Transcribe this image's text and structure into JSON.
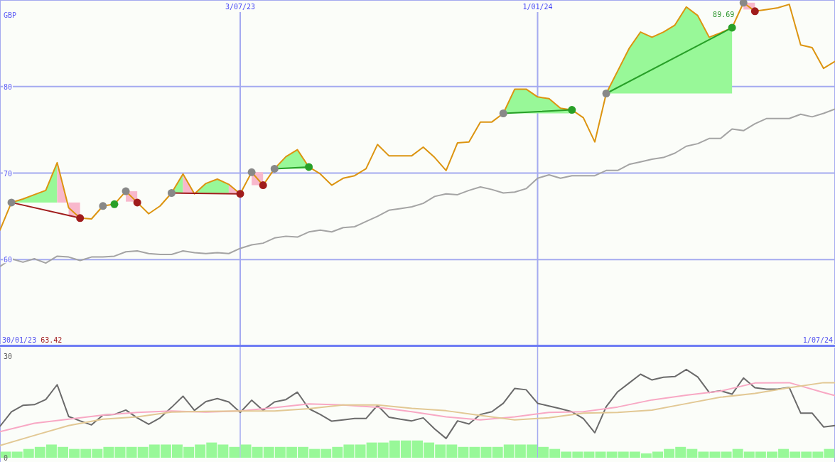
{
  "chart_data": [
    {
      "type": "line",
      "ylabel": "GBP",
      "x": [
        "2023-02-06",
        "2023-02-13",
        "2023-02-20",
        "2023-02-27",
        "2023-03-06",
        "2023-03-13",
        "2023-03-20",
        "2023-03-27",
        "2023-04-03",
        "2023-04-10",
        "2023-04-17",
        "2023-04-24",
        "2023-05-01",
        "2023-05-08",
        "2023-05-15",
        "2023-05-22",
        "2023-05-29",
        "2023-06-05",
        "2023-06-12",
        "2023-06-19",
        "2023-06-26",
        "2023-07-03",
        "2023-07-10",
        "2023-07-17",
        "2023-07-24",
        "2023-07-31",
        "2023-08-07",
        "2023-08-14",
        "2023-08-21",
        "2023-08-28",
        "2023-09-04",
        "2023-09-11",
        "2023-09-18",
        "2023-09-25",
        "2023-10-02",
        "2023-10-09",
        "2023-10-16",
        "2023-10-23",
        "2023-10-30",
        "2023-11-06",
        "2023-11-13",
        "2023-11-20",
        "2023-11-27",
        "2023-12-04",
        "2023-12-11",
        "2023-12-18",
        "2023-12-25",
        "2024-01-01",
        "2024-01-08",
        "2024-01-15",
        "2024-01-22",
        "2024-01-29",
        "2024-02-05",
        "2024-02-12",
        "2024-02-19",
        "2024-02-26",
        "2024-03-04",
        "2024-03-11",
        "2024-03-18",
        "2024-03-25",
        "2024-04-01",
        "2024-04-08",
        "2024-04-15",
        "2024-04-22",
        "2024-04-29",
        "2024-05-06",
        "2024-05-13",
        "2024-05-20",
        "2024-05-27",
        "2024-06-03",
        "2024-06-10",
        "2024-06-17",
        "2024-06-24",
        "2024-07-01"
      ],
      "xlim": [
        "2023-02-06",
        "2024-07-01"
      ],
      "xticks": [
        {
          "value": "2023-07-03",
          "label": "3/07/23"
        },
        {
          "value": "2024-01-01",
          "label": "1/01/24"
        }
      ],
      "ylim": [
        50,
        90
      ],
      "yticks": [
        60,
        70,
        80
      ],
      "grid": true,
      "annotations": [
        "30/01/23",
        "63.42",
        "1/07/24",
        {
          "text": "89.69",
          "x": "2024-05-06",
          "y": 89.69
        }
      ],
      "series": [
        {
          "color": "#dc9410",
          "values": [
            63.42,
            66.6,
            67.0,
            67.5,
            68.0,
            71.2,
            66.0,
            64.8,
            64.7,
            66.2,
            66.4,
            67.9,
            66.6,
            65.3,
            66.2,
            67.7,
            69.9,
            67.6,
            68.8,
            69.3,
            68.7,
            67.6,
            70.1,
            68.6,
            70.5,
            71.9,
            72.7,
            70.7,
            69.9,
            68.6,
            69.4,
            69.7,
            70.5,
            73.3,
            72.0,
            72.0,
            72.0,
            73.0,
            71.8,
            70.3,
            73.5,
            73.6,
            75.9,
            75.9,
            76.9,
            79.7,
            79.7,
            78.8,
            78.6,
            77.5,
            77.3,
            76.4,
            73.6,
            79.2,
            81.8,
            84.4,
            86.3,
            85.7,
            86.3,
            87.1,
            89.2,
            88.2,
            85.7,
            86.2,
            86.8,
            89.69,
            88.7,
            88.9,
            89.1,
            89.5,
            84.8,
            84.5,
            82.1,
            82.9
          ]
        },
        {
          "color": "#a4a4a4",
          "values": [
            59.2,
            60.1,
            59.7,
            60.1,
            59.6,
            60.4,
            60.3,
            59.9,
            60.3,
            60.3,
            60.4,
            60.9,
            61.0,
            60.7,
            60.6,
            60.6,
            61.0,
            60.8,
            60.7,
            60.8,
            60.7,
            61.3,
            61.7,
            61.9,
            62.5,
            62.7,
            62.6,
            63.2,
            63.4,
            63.2,
            63.7,
            63.8,
            64.4,
            65.0,
            65.7,
            65.9,
            66.1,
            66.5,
            67.3,
            67.6,
            67.5,
            68.0,
            68.4,
            68.1,
            67.7,
            67.8,
            68.2,
            69.4,
            69.8,
            69.4,
            69.7,
            69.7,
            69.7,
            70.3,
            70.3,
            71.0,
            71.3,
            71.6,
            71.8,
            72.3,
            73.1,
            73.4,
            74.0,
            74.0,
            75.1,
            74.9,
            75.7,
            76.3,
            76.3,
            76.3,
            76.8,
            76.5,
            76.9,
            77.4
          ]
        },
        {
          "color": "#98f898",
          "x": [
            "2023-02-13",
            "2023-02-20",
            "2023-02-27",
            "2023-03-06",
            "2023-03-13"
          ],
          "values": [
            null,
            null,
            null,
            null,
            null
          ],
          "lower": [
            66.6,
            66.6,
            66.6,
            66.6,
            66.6
          ],
          "upper": [
            66.6,
            67.0,
            67.5,
            68.0,
            71.2
          ]
        },
        {
          "color": "#f8b8cc",
          "x": [
            "2023-03-13",
            "2023-03-20"
          ],
          "values": [
            null,
            null
          ],
          "lower": [
            66.6,
            66.6
          ],
          "upper": [
            71.2,
            66.0
          ]
        },
        {
          "color": "#f8b8cc",
          "x": [
            "2023-03-20",
            "2023-03-27"
          ],
          "values": [
            null,
            null
          ],
          "lower": [
            65.0,
            65.0
          ],
          "upper": [
            66.6,
            66.6
          ]
        },
        {
          "color": "#f8b8cc",
          "x": [
            "2023-04-24",
            "2023-05-01"
          ],
          "values": [
            null,
            null
          ],
          "lower": [
            66.7,
            66.7
          ],
          "upper": [
            67.9,
            67.9
          ]
        },
        {
          "color": "#98f898",
          "x": [
            "2023-05-22",
            "2023-05-29"
          ],
          "values": [
            null,
            null
          ],
          "lower": [
            67.7,
            67.7
          ],
          "upper": [
            67.7,
            69.9
          ]
        },
        {
          "color": "#f8b8cc",
          "x": [
            "2023-05-29",
            "2023-06-05"
          ],
          "values": [
            null,
            null
          ],
          "lower": [
            67.7,
            67.7
          ],
          "upper": [
            69.9,
            67.6
          ]
        },
        {
          "color": "#98f898",
          "x": [
            "2023-06-05",
            "2023-06-12",
            "2023-06-19",
            "2023-06-26"
          ],
          "values": [
            null,
            null,
            null,
            null
          ],
          "lower": [
            67.7,
            67.7,
            67.7,
            67.7
          ],
          "upper": [
            67.6,
            68.8,
            69.3,
            68.7
          ]
        },
        {
          "color": "#f8b8cc",
          "x": [
            "2023-06-26",
            "2023-07-03"
          ],
          "values": [
            null,
            null
          ],
          "lower": [
            67.7,
            67.7
          ],
          "upper": [
            68.7,
            67.6
          ]
        },
        {
          "color": "#f8b8cc",
          "x": [
            "2023-07-10",
            "2023-07-17"
          ],
          "values": [
            null,
            null
          ],
          "lower": [
            68.6,
            68.6
          ],
          "upper": [
            70.1,
            70.1
          ]
        },
        {
          "color": "#98f898",
          "x": [
            "2023-07-24",
            "2023-07-31",
            "2023-08-07",
            "2023-08-14"
          ],
          "values": [
            null,
            null,
            null,
            null
          ],
          "lower": [
            70.5,
            70.5,
            70.5,
            70.5
          ],
          "upper": [
            70.5,
            71.9,
            72.7,
            70.7
          ]
        },
        {
          "color": "#98f898",
          "x": [
            "2023-12-11",
            "2023-12-18",
            "2023-12-25",
            "2024-01-01",
            "2024-01-08",
            "2024-01-15",
            "2024-01-22"
          ],
          "values": [
            null,
            null,
            null,
            null,
            null,
            null,
            null
          ],
          "lower": [
            76.9,
            76.9,
            76.9,
            76.9,
            76.9,
            76.9,
            76.9
          ],
          "upper": [
            76.9,
            79.7,
            79.7,
            78.8,
            78.6,
            77.5,
            77.3
          ]
        },
        {
          "color": "#98f898",
          "x": [
            "2024-02-12",
            "2024-02-19",
            "2024-02-26",
            "2024-03-04",
            "2024-03-11",
            "2024-03-18",
            "2024-03-25",
            "2024-04-01",
            "2024-04-08",
            "2024-04-15",
            "2024-04-22",
            "2024-04-29"
          ],
          "values": [
            null,
            null,
            null,
            null,
            null,
            null,
            null,
            null,
            null,
            null,
            null,
            null
          ],
          "lower": [
            79.2,
            79.2,
            79.2,
            79.2,
            79.2,
            79.2,
            79.2,
            79.2,
            79.2,
            79.2,
            79.2,
            79.2
          ],
          "upper": [
            79.2,
            81.8,
            84.4,
            86.3,
            85.7,
            86.3,
            87.1,
            89.2,
            88.2,
            85.7,
            86.2,
            86.8
          ]
        },
        {
          "color": "#f8b8cc",
          "x": [
            "2024-05-06",
            "2024-05-13"
          ],
          "values": [
            null,
            null
          ],
          "lower": [
            88.9,
            88.9
          ],
          "upper": [
            89.69,
            89.69
          ]
        },
        {
          "type": "line",
          "color": "#a01c1c",
          "colors": [
            "#888888",
            "#a01c1c"
          ],
          "marker": "circle",
          "x": [
            "2023-02-13",
            "2023-03-27"
          ],
          "values": [
            66.6,
            64.8
          ]
        },
        {
          "type": "scatter",
          "colors": [
            "#888888",
            "#28a028"
          ],
          "marker": "circle",
          "x": [
            "2023-04-10",
            "2023-04-17"
          ],
          "values": [
            66.2,
            66.4
          ]
        },
        {
          "type": "scatter",
          "colors": [
            "#888888",
            "#a01c1c"
          ],
          "marker": "circle",
          "x": [
            "2023-04-24",
            "2023-05-01"
          ],
          "values": [
            67.9,
            66.6
          ]
        },
        {
          "type": "line",
          "color": "#a01c1c",
          "colors": [
            "#888888",
            "#a01c1c"
          ],
          "marker": "circle",
          "x": [
            "2023-05-22",
            "2023-07-03"
          ],
          "values": [
            67.7,
            67.6
          ]
        },
        {
          "type": "scatter",
          "colors": [
            "#888888",
            "#a01c1c"
          ],
          "marker": "circle",
          "x": [
            "2023-07-10",
            "2023-07-17"
          ],
          "values": [
            70.1,
            68.6
          ]
        },
        {
          "type": "line",
          "color": "#28a028",
          "colors": [
            "#888888",
            "#28a028"
          ],
          "marker": "circle",
          "x": [
            "2023-07-24",
            "2023-08-14"
          ],
          "values": [
            70.5,
            70.7
          ]
        },
        {
          "type": "line",
          "color": "#28a028",
          "colors": [
            "#888888",
            "#28a028"
          ],
          "marker": "circle",
          "x": [
            "2023-12-11",
            "2024-01-22"
          ],
          "values": [
            76.9,
            77.3
          ]
        },
        {
          "type": "line",
          "color": "#28a028",
          "colors": [
            "#888888",
            "#28a028"
          ],
          "marker": "circle",
          "x": [
            "2024-02-12",
            "2024-04-29"
          ],
          "values": [
            79.2,
            86.8
          ]
        },
        {
          "type": "scatter",
          "colors": [
            "#888888",
            "#a01c1c"
          ],
          "marker": "circle",
          "x": [
            "2024-05-06",
            "2024-05-13"
          ],
          "values": [
            89.69,
            88.7
          ]
        }
      ]
    },
    {
      "type": "line",
      "x": [
        "2023-02-06",
        "2023-02-13",
        "2023-02-20",
        "2023-02-27",
        "2023-03-06",
        "2023-03-13",
        "2023-03-20",
        "2023-03-27",
        "2023-04-03",
        "2023-04-10",
        "2023-04-17",
        "2023-04-24",
        "2023-05-01",
        "2023-05-08",
        "2023-05-15",
        "2023-05-22",
        "2023-05-29",
        "2023-06-05",
        "2023-06-12",
        "2023-06-19",
        "2023-06-26",
        "2023-07-03",
        "2023-07-10",
        "2023-07-17",
        "2023-07-24",
        "2023-07-31",
        "2023-08-07",
        "2023-08-14",
        "2023-08-21",
        "2023-08-28",
        "2023-09-04",
        "2023-09-11",
        "2023-09-18",
        "2023-09-25",
        "2023-10-02",
        "2023-10-09",
        "2023-10-16",
        "2023-10-23",
        "2023-10-30",
        "2023-11-06",
        "2023-11-13",
        "2023-11-20",
        "2023-11-27",
        "2023-12-04",
        "2023-12-11",
        "2023-12-18",
        "2023-12-25",
        "2024-01-01",
        "2024-01-08",
        "2024-01-15",
        "2024-01-22",
        "2024-01-29",
        "2024-02-05",
        "2024-02-12",
        "2024-02-19",
        "2024-02-26",
        "2024-03-04",
        "2024-03-11",
        "2024-03-18",
        "2024-03-25",
        "2024-04-01",
        "2024-04-08",
        "2024-04-15",
        "2024-04-22",
        "2024-04-29",
        "2024-05-06",
        "2024-05-13",
        "2024-05-20",
        "2024-05-27",
        "2024-06-03",
        "2024-06-10",
        "2024-06-17",
        "2024-06-24",
        "2024-07-01"
      ],
      "xlim": [
        "2023-02-06",
        "2024-07-01"
      ],
      "xticks": [
        {
          "value": "2023-07-03",
          "label": null
        },
        {
          "value": "2024-01-01",
          "label": null
        }
      ],
      "ylim": [
        0,
        33
      ],
      "yticks": [
        0,
        30
      ],
      "grid": "x",
      "tick_labels": "y",
      "series": [
        {
          "color": "#6a6a6a",
          "values": [
            9.3,
            13.6,
            15.5,
            15.7,
            17.2,
            21.6,
            12.2,
            10.9,
            9.7,
            12.6,
            12.8,
            14.1,
            11.8,
            9.9,
            11.8,
            14.9,
            18.2,
            14.0,
            16.6,
            17.5,
            16.5,
            13.4,
            17.0,
            14.0,
            16.5,
            17.2,
            19.4,
            14.5,
            12.8,
            10.8,
            11.2,
            11.6,
            11.6,
            15.5,
            12.0,
            11.4,
            10.9,
            11.8,
            8.5,
            5.7,
            10.9,
            10.0,
            12.8,
            13.6,
            16.1,
            20.5,
            20.1,
            16.1,
            15.3,
            14.5,
            13.6,
            11.6,
            7.4,
            15.1,
            19.5,
            22.1,
            24.7,
            23.0,
            23.8,
            24.0,
            26.1,
            23.9,
            19.3,
            19.8,
            18.8,
            23.6,
            20.7,
            20.3,
            20.3,
            20.8,
            13.2,
            13.2,
            9.1,
            9.5
          ]
        },
        {
          "color": "#f8a8c4",
          "x": [
            "2023-02-06",
            "2023-02-27",
            "2023-03-20",
            "2023-04-10",
            "2023-05-01",
            "2023-05-22",
            "2023-06-12",
            "2023-07-03",
            "2023-07-24",
            "2023-08-14",
            "2023-09-04",
            "2023-09-25",
            "2023-10-16",
            "2023-11-06",
            "2023-11-27",
            "2023-12-18",
            "2024-01-08",
            "2024-01-29",
            "2024-02-19",
            "2024-03-11",
            "2024-04-01",
            "2024-04-22",
            "2024-05-13",
            "2024-06-03",
            "2024-06-24",
            "2024-07-01"
          ],
          "values": [
            7.7,
            10.2,
            11.4,
            12.6,
            13.4,
            13.8,
            13.5,
            13.8,
            14.8,
            15.9,
            15.6,
            14.9,
            13.6,
            12.1,
            11.2,
            12.1,
            13.4,
            13.6,
            15.0,
            17.1,
            18.5,
            19.7,
            22.1,
            22.2,
            19.3,
            18.4
          ]
        },
        {
          "color": "#e2c894",
          "x": [
            "2023-02-06",
            "2023-02-27",
            "2023-03-20",
            "2023-04-10",
            "2023-05-01",
            "2023-05-22",
            "2023-06-12",
            "2023-07-03",
            "2023-07-24",
            "2023-08-14",
            "2023-09-04",
            "2023-09-25",
            "2023-10-16",
            "2023-11-06",
            "2023-11-27",
            "2023-12-18",
            "2024-01-08",
            "2024-01-29",
            "2024-02-19",
            "2024-03-11",
            "2024-04-01",
            "2024-04-22",
            "2024-05-13",
            "2024-06-03",
            "2024-06-24",
            "2024-07-01"
          ],
          "values": [
            3.6,
            6.6,
            9.5,
            11.4,
            12.1,
            13.5,
            13.7,
            13.8,
            13.8,
            14.5,
            15.6,
            15.6,
            14.6,
            13.9,
            12.5,
            11.2,
            11.8,
            13.2,
            13.4,
            14.1,
            16.0,
            17.9,
            19.0,
            20.7,
            22.2,
            22.2
          ]
        },
        {
          "type": "bar",
          "color": "#98f898",
          "x": [
            "2023-02-09T12:00",
            "2023-02-16T12:00",
            "2023-02-23T12:00",
            "2023-03-02T12:00",
            "2023-03-09T12:00",
            "2023-03-16T12:00",
            "2023-03-23T12:00",
            "2023-03-30T12:00",
            "2023-04-06T12:00",
            "2023-04-13T12:00",
            "2023-04-20T12:00",
            "2023-04-27T12:00",
            "2023-05-04T12:00",
            "2023-05-11T12:00",
            "2023-05-18T12:00",
            "2023-05-25T12:00",
            "2023-06-01T12:00",
            "2023-06-08T12:00",
            "2023-06-15T12:00",
            "2023-06-22T12:00",
            "2023-06-29T12:00",
            "2023-07-06T12:00",
            "2023-07-13T12:00",
            "2023-07-20T12:00",
            "2023-07-27T12:00",
            "2023-08-03T12:00",
            "2023-08-10T12:00",
            "2023-08-17T12:00",
            "2023-08-24T12:00",
            "2023-08-31T12:00",
            "2023-09-07T12:00",
            "2023-09-14T12:00",
            "2023-09-21T12:00",
            "2023-09-28T12:00",
            "2023-10-05T12:00",
            "2023-10-12T12:00",
            "2023-10-19T12:00",
            "2023-10-26T12:00",
            "2023-11-02T12:00",
            "2023-11-09T12:00",
            "2023-11-16T12:00",
            "2023-11-23T12:00",
            "2023-11-30T12:00",
            "2023-12-07T12:00",
            "2023-12-14T12:00",
            "2023-12-21T12:00",
            "2023-12-28T12:00",
            "2024-01-04T12:00",
            "2024-01-11T12:00",
            "2024-01-18T12:00",
            "2024-01-25T12:00",
            "2024-02-01T12:00",
            "2024-02-08T12:00",
            "2024-02-15T12:00",
            "2024-02-22T12:00",
            "2024-02-29T12:00",
            "2024-03-07T12:00",
            "2024-03-14T12:00",
            "2024-03-21T12:00",
            "2024-03-28T12:00",
            "2024-04-04T12:00",
            "2024-04-11T12:00",
            "2024-04-18T12:00",
            "2024-04-25T12:00",
            "2024-05-02T12:00",
            "2024-05-09T12:00",
            "2024-05-16T12:00",
            "2024-05-23T12:00",
            "2024-05-30T12:00",
            "2024-06-06T12:00",
            "2024-06-13T12:00",
            "2024-06-20T12:00",
            "2024-06-27T12:00"
          ],
          "values": [
            1.8,
            1.8,
            2.6,
            3.2,
            3.9,
            3.2,
            2.6,
            2.6,
            2.6,
            3.2,
            3.2,
            3.2,
            3.2,
            3.9,
            3.9,
            3.9,
            3.2,
            3.9,
            4.5,
            3.9,
            3.2,
            3.9,
            3.2,
            3.2,
            3.2,
            3.2,
            3.2,
            2.6,
            2.6,
            3.2,
            3.9,
            3.9,
            4.5,
            4.5,
            5.1,
            5.1,
            5.1,
            4.5,
            3.9,
            3.9,
            3.2,
            3.2,
            3.2,
            3.2,
            3.9,
            3.9,
            3.9,
            3.2,
            2.6,
            1.8,
            1.8,
            1.8,
            1.8,
            1.8,
            1.8,
            1.8,
            1.3,
            1.8,
            2.6,
            3.2,
            2.6,
            1.8,
            1.8,
            1.8,
            2.6,
            1.8,
            1.8,
            1.8,
            2.6,
            1.8,
            1.8,
            1.8,
            2.6
          ]
        }
      ]
    }
  ]
}
